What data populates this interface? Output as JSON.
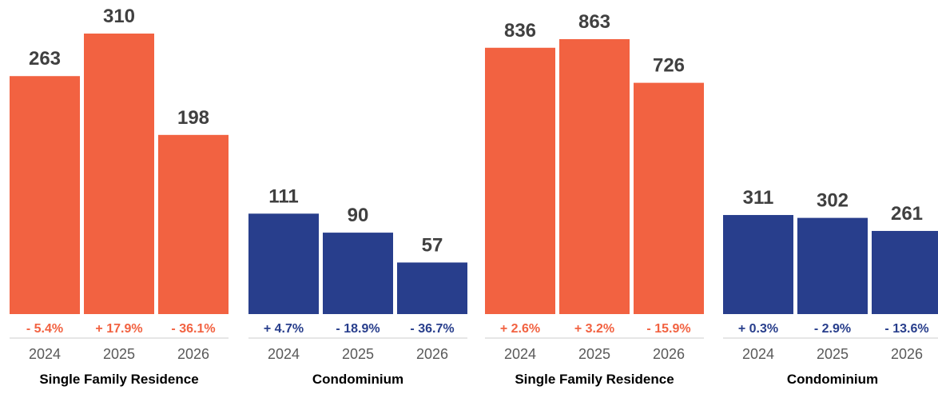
{
  "colors": {
    "single_family": "#F26241",
    "condominium": "#283E8C",
    "value_text": "#404040",
    "year_text": "#595959",
    "axis_line": "#CCCCCC"
  },
  "chart_data": [
    {
      "type": "bar",
      "groups": [
        {
          "name": "Single Family Residence",
          "color_key": "single_family",
          "categories": [
            "2024",
            "2025",
            "2026"
          ],
          "values": [
            263,
            310,
            198
          ],
          "changes": [
            "- 5.4%",
            "+ 17.9%",
            "- 36.1%"
          ]
        },
        {
          "name": "Condominium",
          "color_key": "condominium",
          "categories": [
            "2024",
            "2025",
            "2026"
          ],
          "values": [
            111,
            90,
            57
          ],
          "changes": [
            "+ 4.7%",
            "- 18.9%",
            "- 36.7%"
          ]
        }
      ],
      "ylim": [
        0,
        310
      ]
    },
    {
      "type": "bar",
      "groups": [
        {
          "name": "Single Family Residence",
          "color_key": "single_family",
          "categories": [
            "2024",
            "2025",
            "2026"
          ],
          "values": [
            836,
            863,
            726
          ],
          "changes": [
            "+ 2.6%",
            "+ 3.2%",
            "- 15.9%"
          ]
        },
        {
          "name": "Condominium",
          "color_key": "condominium",
          "categories": [
            "2024",
            "2025",
            "2026"
          ],
          "values": [
            311,
            302,
            261
          ],
          "changes": [
            "+ 0.3%",
            "- 2.9%",
            "- 13.6%"
          ]
        }
      ],
      "ylim": [
        0,
        863
      ]
    }
  ]
}
